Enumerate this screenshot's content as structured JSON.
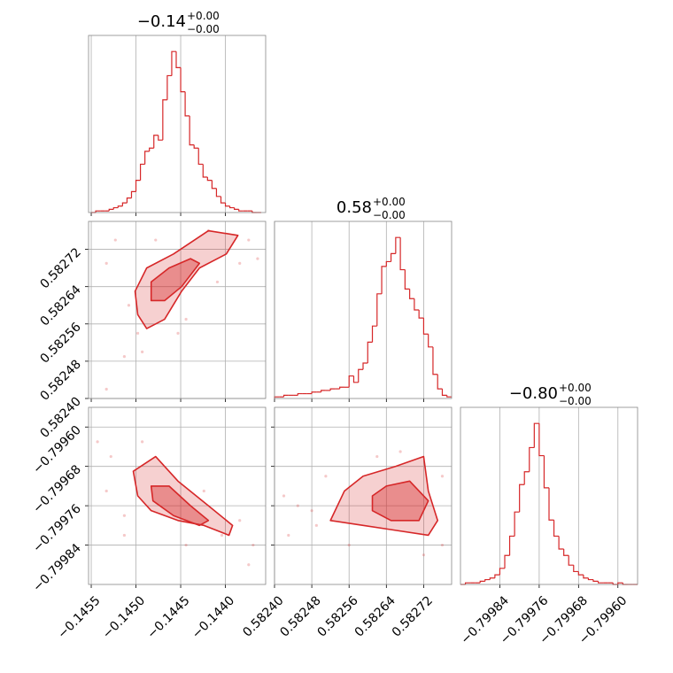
{
  "chart_data": [
    {
      "type": "histogram",
      "title": "−0.14",
      "title_upper": "+0.00",
      "title_lower": "−0.00",
      "color": "#d62728",
      "xlim": [
        -0.14553,
        -0.14355
      ],
      "ylim": [
        0,
        110
      ],
      "xticks": [
        -0.1455,
        -0.145,
        -0.1445,
        -0.144
      ],
      "xtick_labels": false,
      "grid": true,
      "bins": [
        -0.1455,
        -0.14545,
        -0.1454,
        -0.14535,
        -0.1453,
        -0.14525,
        -0.1452,
        -0.14515,
        -0.1451,
        -0.14505,
        -0.145,
        -0.14495,
        -0.1449,
        -0.14485,
        -0.1448,
        -0.14475,
        -0.1447,
        -0.14465,
        -0.1446,
        -0.14455,
        -0.1445,
        -0.14445,
        -0.1444,
        -0.14435,
        -0.1443,
        -0.14425,
        -0.1442,
        -0.14415,
        -0.1441,
        -0.14405,
        -0.144,
        -0.14395,
        -0.1439,
        -0.14385,
        -0.1438,
        -0.14375,
        -0.1437,
        -0.14365,
        -0.1436
      ],
      "counts": [
        0,
        1,
        1,
        1,
        2,
        3,
        4,
        6,
        9,
        13,
        20,
        30,
        38,
        40,
        48,
        45,
        70,
        85,
        100,
        90,
        75,
        60,
        42,
        40,
        30,
        22,
        20,
        15,
        10,
        6,
        4,
        3,
        2,
        1,
        1,
        1,
        0,
        0
      ]
    },
    {
      "type": "scatter",
      "color": "#d62728",
      "grid": true,
      "xlim": [
        -0.14553,
        -0.14355
      ],
      "ylim": [
        0.5824,
        0.58278
      ],
      "xticks": [
        -0.1455,
        -0.145,
        -0.1445,
        -0.144
      ],
      "xtick_labels": false,
      "yticks": [
        {
          "value": 0.5824,
          "label": "0.58240"
        },
        0.58248,
        0.58256,
        0.58264,
        0.58272
      ],
      "ytick_labels": true,
      "x": [
        -0.14513,
        -0.14498,
        -0.14533,
        -0.14523,
        -0.14374,
        -0.14364,
        -0.14444,
        -0.14409,
        -0.14478,
        -0.14493,
        -0.14533,
        -0.14419,
        -0.14384,
        -0.14508,
        -0.14453
      ],
      "y": [
        0.58249,
        0.58254,
        0.58269,
        0.58274,
        0.58274,
        0.5827,
        0.58257,
        0.58265,
        0.58274,
        0.5825,
        0.58242,
        0.58276,
        0.58269,
        0.5826,
        0.58254
      ],
      "contours": [
        {
          "x": [
            -0.14501,
            -0.14488,
            -0.14458,
            -0.14419,
            -0.14386,
            -0.14399,
            -0.14429,
            -0.14449,
            -0.14468,
            -0.14488,
            -0.14498
          ],
          "y": [
            0.58263,
            0.58268,
            0.58271,
            0.58276,
            0.58275,
            0.58271,
            0.58268,
            0.58263,
            0.58257,
            0.58255,
            0.58258
          ]
        },
        {
          "x": [
            -0.14483,
            -0.14463,
            -0.14439,
            -0.14429,
            -0.14449,
            -0.14468,
            -0.14483
          ],
          "y": [
            0.58265,
            0.58268,
            0.5827,
            0.58269,
            0.58264,
            0.58261,
            0.58261
          ]
        }
      ]
    },
    {
      "type": "scatter",
      "color": "#d62728",
      "grid": true,
      "xlim": [
        -0.14553,
        -0.14355
      ],
      "ylim": [
        -0.79992,
        -0.79956
      ],
      "xticks": [
        {
          "value": -0.1455,
          "label": "−0.1455"
        },
        {
          "value": -0.145,
          "label": "−0.1450"
        },
        {
          "value": -0.1445,
          "label": "−0.1445"
        },
        {
          "value": -0.144,
          "label": "−0.1440"
        }
      ],
      "xtick_labels": true,
      "yticks": [
        {
          "value": -0.79984,
          "label": "−0.79984"
        },
        {
          "value": -0.79976,
          "label": "−0.79976"
        },
        {
          "value": -0.79968,
          "label": "−0.79968"
        },
        {
          "value": -0.7996,
          "label": "−0.79960"
        }
      ],
      "ytick_labels": true,
      "x": [
        -0.14543,
        -0.14528,
        -0.14513,
        -0.14533,
        -0.14384,
        -0.14369,
        -0.14374,
        -0.14424,
        -0.14444,
        -0.14493,
        -0.14404,
        -0.14513
      ],
      "y": [
        -0.79963,
        -0.79966,
        -0.79978,
        -0.79973,
        -0.79979,
        -0.79984,
        -0.79988,
        -0.79973,
        -0.79984,
        -0.79963,
        -0.79982,
        -0.79982
      ],
      "contours": [
        {
          "x": [
            -0.14503,
            -0.14478,
            -0.14453,
            -0.14419,
            -0.14392,
            -0.14396,
            -0.14424,
            -0.14453,
            -0.14483,
            -0.14498
          ],
          "y": [
            -0.79969,
            -0.79966,
            -0.79971,
            -0.79976,
            -0.7998,
            -0.79982,
            -0.7998,
            -0.79979,
            -0.79977,
            -0.79974
          ]
        },
        {
          "x": [
            -0.14483,
            -0.14463,
            -0.14439,
            -0.14419,
            -0.14429,
            -0.14458,
            -0.14481
          ],
          "y": [
            -0.79972,
            -0.79972,
            -0.79976,
            -0.79979,
            -0.7998,
            -0.79978,
            -0.79975
          ]
        }
      ]
    },
    {
      "type": "histogram",
      "title": "0.58",
      "title_upper": "+0.00",
      "title_lower": "−0.00",
      "color": "#d62728",
      "xlim": [
        0.5824,
        0.58278
      ],
      "ylim": [
        0,
        110
      ],
      "xticks": [
        0.5824,
        0.58248,
        0.58256,
        0.58264,
        0.58272
      ],
      "xtick_labels": false,
      "grid": true,
      "bins": [
        0.5824,
        0.58241,
        0.58242,
        0.58243,
        0.58244,
        0.58245,
        0.58246,
        0.58247,
        0.58248,
        0.58249,
        0.5825,
        0.58251,
        0.58252,
        0.58253,
        0.58254,
        0.58255,
        0.58256,
        0.58257,
        0.58258,
        0.58259,
        0.5826,
        0.58261,
        0.58262,
        0.58263,
        0.58264,
        0.58265,
        0.58266,
        0.58267,
        0.58268,
        0.58269,
        0.5827,
        0.58271,
        0.58272,
        0.58273,
        0.58274,
        0.58275,
        0.58276,
        0.58277,
        0.58278
      ],
      "counts": [
        1,
        1,
        2,
        2,
        2,
        3,
        3,
        3,
        4,
        4,
        5,
        5,
        6,
        6,
        7,
        7,
        14,
        10,
        18,
        22,
        35,
        45,
        65,
        82,
        85,
        90,
        100,
        80,
        68,
        62,
        55,
        50,
        40,
        32,
        15,
        6,
        2,
        1
      ]
    },
    {
      "type": "scatter",
      "color": "#d62728",
      "grid": true,
      "xlim": [
        0.5824,
        0.58278
      ],
      "ylim": [
        -0.79992,
        -0.79956
      ],
      "xticks": [
        {
          "value": 0.5824,
          "label": "0.58240"
        },
        0.58248,
        0.58256,
        0.58264,
        0.58272
      ],
      "xtick_labels": true,
      "yticks": [
        -0.79984,
        -0.79976,
        -0.79968,
        -0.7996
      ],
      "ytick_labels": false,
      "x": [
        0.58242,
        0.58245,
        0.58248,
        0.58243,
        0.58249,
        0.58267,
        0.58276,
        0.58272,
        0.58256,
        0.58251,
        0.58262,
        0.58276
      ],
      "y": [
        -0.79974,
        -0.79976,
        -0.79977,
        -0.79982,
        -0.7998,
        -0.79965,
        -0.7997,
        -0.79986,
        -0.79984,
        -0.7997,
        -0.79966,
        -0.79984
      ],
      "contours": [
        {
          "x": [
            0.58255,
            0.58259,
            0.58266,
            0.58272,
            0.58273,
            0.58275,
            0.58273,
            0.58266,
            0.58259,
            0.58252
          ],
          "y": [
            -0.79973,
            -0.7997,
            -0.79968,
            -0.79966,
            -0.79973,
            -0.79979,
            -0.79982,
            -0.79981,
            -0.7998,
            -0.79979
          ]
        },
        {
          "x": [
            0.58261,
            0.58264,
            0.58269,
            0.58273,
            0.58271,
            0.58265,
            0.58261
          ],
          "y": [
            -0.79974,
            -0.79972,
            -0.79971,
            -0.79975,
            -0.79979,
            -0.79979,
            -0.79977
          ]
        }
      ]
    },
    {
      "type": "histogram",
      "title": "−0.80",
      "title_upper": "+0.00",
      "title_lower": "−0.00",
      "color": "#d62728",
      "xlim": [
        -0.79992,
        -0.79956
      ],
      "ylim": [
        0,
        110
      ],
      "xticks": [
        {
          "value": -0.79984,
          "label": "−0.79984"
        },
        {
          "value": -0.79976,
          "label": "−0.79976"
        },
        {
          "value": -0.79968,
          "label": "−0.79968"
        },
        {
          "value": -0.7996,
          "label": "−0.79960"
        }
      ],
      "xtick_labels": true,
      "grid": true,
      "bins": [
        -0.79992,
        -0.79991,
        -0.7999,
        -0.79989,
        -0.79988,
        -0.79987,
        -0.79986,
        -0.79985,
        -0.79984,
        -0.79983,
        -0.79982,
        -0.79981,
        -0.7998,
        -0.79979,
        -0.79978,
        -0.79977,
        -0.79976,
        -0.79975,
        -0.79974,
        -0.79973,
        -0.79972,
        -0.79971,
        -0.7997,
        -0.79969,
        -0.79968,
        -0.79967,
        -0.79966,
        -0.79965,
        -0.79964,
        -0.79963,
        -0.79962,
        -0.79961,
        -0.7996,
        -0.79959,
        -0.79958,
        -0.79957,
        -0.79956
      ],
      "counts": [
        0,
        1,
        1,
        1,
        2,
        3,
        4,
        6,
        10,
        18,
        30,
        45,
        62,
        70,
        85,
        100,
        80,
        60,
        40,
        30,
        22,
        18,
        12,
        8,
        6,
        4,
        3,
        2,
        1,
        1,
        1,
        0,
        1,
        0,
        0,
        0
      ]
    }
  ]
}
